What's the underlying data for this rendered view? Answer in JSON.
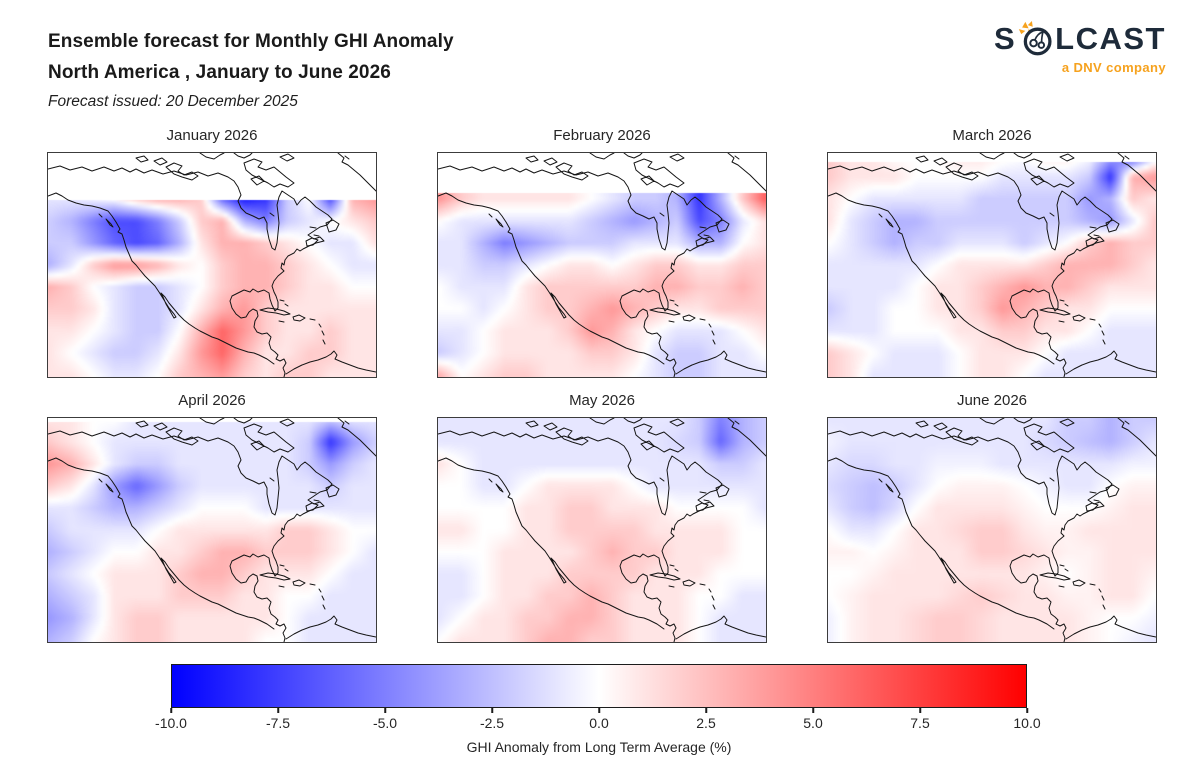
{
  "header": {
    "title_line1": "Ensemble forecast for Monthly GHI Anomaly",
    "title_line2": "North America , January to June 2026",
    "subtitle": "Forecast issued: 20 December 2025"
  },
  "logo": {
    "brand": "SOLCAST",
    "brand_prefix": "S",
    "brand_suffix": "LCAST",
    "tagline": "a DNV company",
    "navy": "#1e2b3a",
    "orange": "#f6a21e"
  },
  "chart_data": {
    "type": "heatmap",
    "subtype": "geographic anomaly maps, 2 rows x 3 columns of subplots",
    "region": "North America",
    "variable": "GHI Anomaly from Long Term Average (%)",
    "colormap": "bwr (blue-white-red)",
    "value_range": [
      -10,
      10
    ],
    "grid_shape": {
      "rows": 11,
      "cols": 16
    },
    "colorbar": {
      "orientation": "horizontal",
      "ticks": [
        -10.0,
        -7.5,
        -5.0,
        -2.5,
        0.0,
        2.5,
        5.0,
        7.5,
        10.0
      ],
      "tick_labels": [
        "-10.0",
        "-7.5",
        "-5.0",
        "-2.5",
        "0.0",
        "2.5",
        "5.0",
        "7.5",
        "10.0"
      ],
      "label": "GHI Anomaly from Long Term Average (%)"
    },
    "panels": [
      {
        "title": "January 2026",
        "nodata_fraction": 0.21,
        "grid": [
          [
            -1,
            -1,
            -0.5,
            0,
            2,
            3,
            3,
            2,
            -6,
            -9,
            -8,
            -2,
            0,
            -7,
            3,
            4
          ],
          [
            -1,
            -1,
            -0.5,
            0,
            2,
            3,
            3,
            2,
            -6,
            -9,
            -8,
            -2,
            0,
            -7,
            3,
            4
          ],
          [
            -1,
            -1,
            -0.5,
            0,
            2,
            3,
            3,
            2,
            -6,
            -9,
            -8,
            -2,
            0,
            -7,
            3,
            4
          ],
          [
            -2,
            -3,
            -5,
            -7,
            -7,
            -5,
            -2,
            2,
            3,
            -3,
            -5,
            -2,
            -1,
            0,
            1,
            2
          ],
          [
            -2,
            -2,
            -4,
            -6,
            -7,
            -6,
            -3,
            1,
            3,
            3,
            2,
            1,
            0,
            -1,
            -1,
            1
          ],
          [
            -3,
            -1,
            2,
            4,
            4,
            3,
            1,
            0,
            2,
            3,
            3,
            2,
            1,
            0,
            -1,
            -1
          ],
          [
            3,
            2,
            0,
            -1,
            -2,
            -2,
            -1,
            0,
            2,
            3,
            3,
            2,
            1,
            1,
            0,
            0
          ],
          [
            2,
            2,
            1,
            -1,
            -2,
            -2,
            -1,
            1,
            3,
            4,
            2,
            1,
            1,
            1,
            1,
            1
          ],
          [
            1,
            1,
            0,
            -1,
            -2,
            -2,
            0,
            3,
            6,
            4,
            2,
            1,
            1,
            2,
            1,
            1
          ],
          [
            1,
            0,
            -1,
            -2,
            -2,
            -1,
            1,
            4,
            6,
            3,
            1,
            1,
            2,
            2,
            1,
            1
          ],
          [
            1,
            1,
            0,
            -1,
            -1,
            0,
            2,
            3,
            4,
            2,
            1,
            2,
            2,
            1,
            1,
            1
          ]
        ]
      },
      {
        "title": "February 2026",
        "nodata_fraction": 0.18,
        "grid": [
          [
            4,
            2,
            1,
            1,
            1,
            1,
            1,
            0,
            -1,
            -2,
            -2,
            -3,
            -8,
            -3,
            2,
            6
          ],
          [
            4,
            2,
            1,
            1,
            1,
            1,
            1,
            0,
            -1,
            -2,
            -2,
            -3,
            -8,
            -3,
            2,
            6
          ],
          [
            4,
            2,
            1,
            1,
            1,
            1,
            1,
            0,
            -1,
            -2,
            -2,
            -3,
            -8,
            -3,
            2,
            6
          ],
          [
            0,
            -1,
            -1,
            -1,
            -1,
            -1,
            -1,
            -2,
            -3,
            -4,
            -3,
            -2,
            -7,
            -5,
            -1,
            1
          ],
          [
            -1,
            -1,
            -3,
            -5,
            -4,
            -3,
            -2,
            -2,
            -2,
            -1,
            -1,
            -1,
            -3,
            -3,
            0,
            1
          ],
          [
            -1,
            -1,
            -2,
            -2,
            -1,
            0,
            1,
            1,
            0,
            1,
            2,
            2,
            1,
            1,
            2,
            2
          ],
          [
            0,
            -1,
            -1,
            -1,
            1,
            2,
            2,
            2,
            2,
            2,
            3,
            3,
            2,
            2,
            3,
            2
          ],
          [
            0,
            0,
            -1,
            0,
            1,
            2,
            2,
            3,
            4,
            3,
            2,
            1,
            1,
            2,
            2,
            2
          ],
          [
            -1,
            -1,
            0,
            1,
            1,
            1,
            2,
            4,
            3,
            1,
            0,
            -1,
            -1,
            -1,
            0,
            1
          ],
          [
            -2,
            -1,
            0,
            1,
            1,
            1,
            1,
            2,
            2,
            1,
            -1,
            -2,
            -2,
            -1,
            -1,
            0
          ],
          [
            3,
            0,
            1,
            2,
            2,
            1,
            1,
            1,
            1,
            0,
            -1,
            -2,
            -2,
            -1,
            -1,
            -1
          ]
        ]
      },
      {
        "title": "March 2026",
        "nodata_fraction": 0.04,
        "grid": [
          [
            2,
            1,
            1,
            0,
            0,
            0,
            1,
            1,
            0.5,
            0,
            1,
            1,
            0,
            -3,
            -8,
            -2
          ],
          [
            2,
            1,
            1,
            1,
            0,
            0,
            0,
            0,
            -1,
            -1,
            -1,
            -1,
            -2,
            -8,
            3,
            4
          ],
          [
            1,
            0,
            -1,
            -1,
            -1,
            -1,
            -1,
            -2,
            -2,
            -2,
            -2,
            -2,
            -4,
            -3,
            2,
            1
          ],
          [
            1,
            -1,
            -2,
            -3,
            -3,
            -2,
            -2,
            -2,
            -2,
            -2,
            -2,
            -2,
            -3,
            -4,
            -1,
            2
          ],
          [
            0,
            -1,
            -2,
            -3,
            -2,
            -2,
            -1,
            -1,
            -1,
            -2,
            -1,
            0,
            2,
            3,
            2,
            2
          ],
          [
            -1,
            -1,
            -1,
            -1,
            -1,
            0,
            1,
            1,
            1,
            1,
            2,
            3,
            3,
            3,
            2,
            1
          ],
          [
            -1,
            -1,
            -1,
            -1,
            0,
            1,
            1,
            2,
            3,
            4,
            3,
            3,
            2,
            1,
            1,
            1
          ],
          [
            -2,
            -1,
            -1,
            0,
            0,
            1,
            1,
            2,
            4,
            3,
            2,
            1,
            1,
            0,
            0,
            0
          ],
          [
            -1,
            -1,
            -1,
            0,
            0,
            0,
            1,
            1,
            2,
            2,
            1,
            1,
            0,
            -1,
            -1,
            -1
          ],
          [
            2,
            1,
            0,
            -1,
            -1,
            -1,
            0,
            1,
            1,
            1,
            0,
            -1,
            -1,
            -1,
            -1,
            -1
          ],
          [
            2,
            1,
            -1,
            -1,
            -1,
            -1,
            0,
            1,
            1,
            0,
            -1,
            -1,
            -1,
            -1,
            -1,
            -1
          ]
        ]
      },
      {
        "title": "April 2026",
        "nodata_fraction": 0.02,
        "grid": [
          [
            1,
            1,
            0,
            0,
            -1,
            -1,
            -1,
            -1,
            -1,
            -1,
            -1,
            -1,
            -1,
            -2,
            -1,
            -1
          ],
          [
            2,
            1,
            0,
            -1,
            -1,
            -1,
            -1,
            -1,
            -1,
            -1,
            -1,
            -1,
            -2,
            -8,
            -4,
            -2
          ],
          [
            4,
            3,
            1,
            -1,
            -2,
            -2,
            -1,
            -1,
            -1,
            -1,
            -1,
            -1,
            -2,
            -4,
            -2,
            -1
          ],
          [
            2,
            1,
            -1,
            -4,
            -6,
            -4,
            -2,
            -1,
            -1,
            -1,
            -1,
            -1,
            -1,
            -2,
            -1,
            -1
          ],
          [
            -1,
            -1,
            -2,
            -3,
            -3,
            -2,
            -1,
            0,
            0,
            0,
            -1,
            -1,
            -1,
            -1,
            -1,
            -1
          ],
          [
            -2,
            -1,
            -1,
            -1,
            -1,
            0,
            1,
            1,
            1,
            1,
            1,
            2,
            2,
            1,
            0,
            0
          ],
          [
            -3,
            -2,
            -1,
            0,
            0,
            1,
            1,
            2,
            3,
            3,
            2,
            2,
            2,
            1,
            0,
            -1
          ],
          [
            -2,
            -1,
            0,
            1,
            1,
            1,
            2,
            3,
            3,
            2,
            1,
            1,
            1,
            0,
            -1,
            -1
          ],
          [
            -3,
            -2,
            -1,
            1,
            1,
            1,
            2,
            2,
            2,
            1,
            1,
            0,
            0,
            -1,
            -1,
            -1
          ],
          [
            -4,
            -3,
            -1,
            1,
            2,
            2,
            1,
            1,
            1,
            1,
            1,
            0,
            -1,
            -1,
            -1,
            -1
          ],
          [
            -3,
            -2,
            0,
            1,
            2,
            2,
            1,
            1,
            1,
            1,
            0,
            0,
            -1,
            -1,
            -1,
            -1
          ]
        ]
      },
      {
        "title": "May 2026",
        "nodata_fraction": 0,
        "grid": [
          [
            -1,
            -1,
            -1,
            -1,
            -1,
            -1,
            -1,
            -1,
            -1,
            -1,
            -1,
            -1,
            -2,
            -5,
            -3,
            -2
          ],
          [
            -1,
            -1,
            -1,
            -1,
            -1,
            -1,
            -1,
            -1,
            -1,
            -1,
            -1,
            -1.5,
            -2,
            -6,
            -3,
            -2
          ],
          [
            1,
            0,
            -1,
            -1,
            -1,
            -1,
            -1,
            -1,
            -1,
            -1,
            -1,
            -1,
            -1,
            -2,
            -2,
            -1
          ],
          [
            0,
            0,
            -1,
            -1,
            0,
            1,
            1,
            1,
            1,
            0,
            -1,
            -1,
            -1,
            -1,
            -1,
            -1
          ],
          [
            0,
            0,
            0,
            0,
            1,
            1,
            2,
            2,
            1,
            1,
            1,
            0,
            0,
            0,
            0,
            -1
          ],
          [
            1,
            1,
            0,
            0,
            1,
            1,
            2,
            2,
            2,
            2,
            1,
            1,
            1,
            1,
            0,
            0
          ],
          [
            0,
            0,
            0,
            1,
            1,
            1,
            1,
            2,
            3,
            2,
            2,
            1,
            1,
            1,
            0,
            0
          ],
          [
            -1,
            -1,
            0,
            1,
            1,
            1,
            2,
            2,
            2,
            2,
            1,
            1,
            1,
            0,
            0,
            0
          ],
          [
            -1,
            -1,
            0,
            1,
            1,
            2,
            2,
            3,
            2,
            1,
            1,
            1,
            0,
            0,
            -1,
            -1
          ],
          [
            -1,
            0,
            1,
            1,
            2,
            2,
            3,
            3,
            2,
            1,
            1,
            1,
            0,
            -1,
            -1,
            -1
          ],
          [
            0,
            1,
            1,
            1,
            2,
            3,
            3,
            2,
            2,
            1,
            1,
            1,
            0,
            -1,
            -1,
            -1
          ]
        ]
      },
      {
        "title": "June 2026",
        "nodata_fraction": 0,
        "grid": [
          [
            -1,
            -1,
            -1,
            -1,
            -1,
            -1,
            -1,
            -1,
            -1,
            -1,
            -1,
            -2,
            -2,
            -3,
            -2,
            -2
          ],
          [
            -0.5,
            -1,
            -1,
            -1,
            -1,
            -1,
            -1,
            -1,
            -1,
            -1,
            -1.5,
            -2,
            -2.5,
            -3,
            -2,
            -1
          ],
          [
            -1,
            -1.5,
            -1.5,
            -1,
            -1,
            -0.5,
            -0.5,
            -0.5,
            -1,
            -1,
            -1,
            -1,
            -1,
            -1,
            -0.5,
            -0.5
          ],
          [
            -1.5,
            -2,
            -2.5,
            -2,
            -1,
            0,
            0.5,
            0.5,
            0.5,
            0,
            -0.5,
            -1,
            -1,
            0,
            0.5,
            0.5
          ],
          [
            -1,
            -2,
            -2.5,
            -1.5,
            0,
            1,
            1,
            1,
            1,
            0.5,
            0,
            0,
            0,
            0.5,
            1,
            1
          ],
          [
            0,
            -1,
            -1,
            0,
            1,
            1,
            1.5,
            2,
            2,
            1,
            0.5,
            0.5,
            1,
            1,
            1,
            1
          ],
          [
            0.5,
            0.5,
            0,
            0.5,
            1,
            1,
            1,
            2,
            2,
            1.5,
            1,
            0.5,
            0.5,
            1,
            1,
            1
          ],
          [
            0,
            0,
            0.5,
            1,
            1,
            1,
            1,
            1,
            1,
            1,
            0.5,
            0,
            0.5,
            1,
            1,
            0.5
          ],
          [
            0,
            0.5,
            1,
            1,
            1,
            1,
            1.5,
            2,
            1.5,
            1,
            1,
            0.5,
            0.5,
            1,
            1,
            0
          ],
          [
            -0.5,
            0.5,
            1,
            1,
            1.5,
            2,
            2,
            1.5,
            1,
            1,
            1,
            1,
            0.5,
            0,
            0,
            -0.5
          ],
          [
            -0.5,
            0.5,
            1,
            1,
            1.5,
            2,
            2,
            1.5,
            1,
            1,
            1,
            1,
            0.5,
            0,
            -0.5,
            -1
          ]
        ]
      }
    ]
  }
}
